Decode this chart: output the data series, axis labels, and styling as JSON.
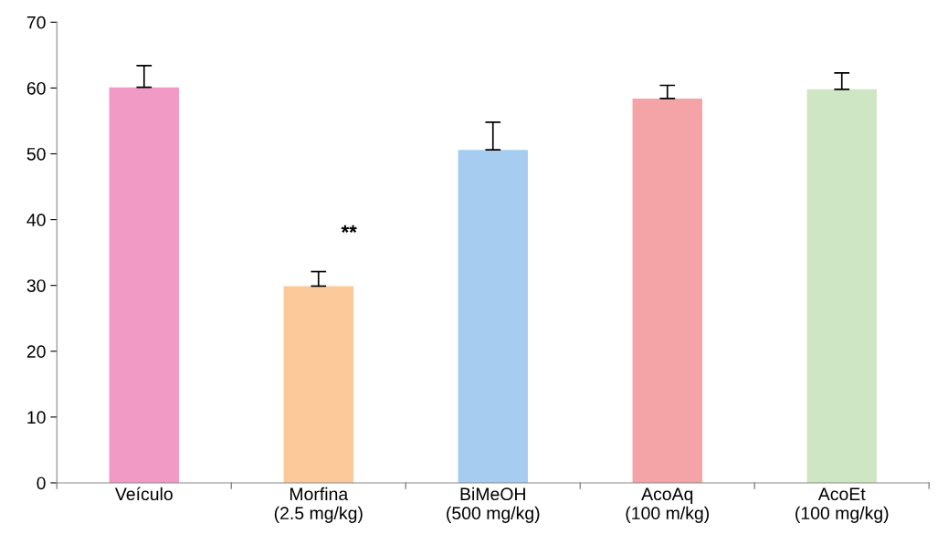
{
  "chart_data": {
    "type": "bar",
    "categories": [
      "Veículo",
      "Morfina\n(2.5 mg/kg)",
      "BiMeOH\n(500 mg/kg)",
      "AcoAq\n(100 m/kg)",
      "AcoEt\n(100 mg/kg)"
    ],
    "values": [
      60.1,
      29.9,
      50.6,
      58.4,
      59.8
    ],
    "errors": [
      [
        60.1,
        63.4
      ],
      [
        29.9,
        32.1
      ],
      [
        50.6,
        54.8
      ],
      [
        58.4,
        60.4
      ],
      [
        59.8,
        62.3
      ]
    ],
    "colors": [
      "#f29ac6",
      "#fcc99a",
      "#a6cdef",
      "#f4a3a6",
      "#cfe6c5"
    ],
    "ylim": [
      0,
      70
    ],
    "yticks": [
      0,
      10,
      20,
      30,
      40,
      50,
      60,
      70
    ],
    "annotations": [
      "**"
    ],
    "grid": false,
    "legend": false
  }
}
